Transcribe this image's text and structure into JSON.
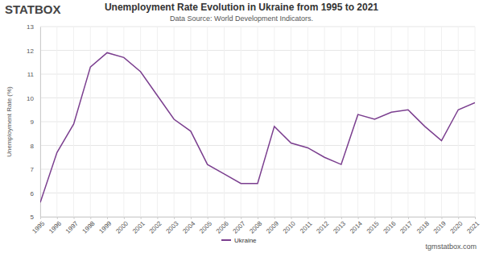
{
  "chart_data": {
    "type": "line",
    "title": "Unemployment Rate Evolution in Ukraine from 1995 to 2021",
    "subtitle": "Data Source: World Development Indicators.",
    "y_label": "Unemployment Rate (%)",
    "annotations": [
      "STATBOX",
      "tgmstatbox.com"
    ],
    "categories": [
      "1995",
      "1996",
      "1997",
      "1998",
      "1999",
      "2000",
      "2001",
      "2002",
      "2003",
      "2004",
      "2005",
      "2006",
      "2007",
      "2008",
      "2009",
      "2010",
      "2011",
      "2012",
      "2013",
      "2014",
      "2015",
      "2016",
      "2017",
      "2018",
      "2019",
      "2020",
      "2021"
    ],
    "series": [
      {
        "name": "Ukraine",
        "color": "#7b3f8f",
        "values": [
          5.6,
          7.7,
          8.9,
          11.3,
          11.9,
          11.7,
          11.1,
          10.1,
          9.1,
          8.6,
          7.2,
          6.8,
          6.4,
          6.4,
          8.8,
          8.1,
          7.9,
          7.5,
          7.2,
          9.3,
          9.1,
          9.4,
          9.5,
          8.8,
          8.2,
          9.5,
          9.8
        ]
      }
    ],
    "ylim": [
      5,
      13
    ],
    "yticks": [
      5,
      6,
      7,
      8,
      9,
      10,
      11,
      12,
      13
    ],
    "grid": true,
    "legend": "bottom"
  }
}
